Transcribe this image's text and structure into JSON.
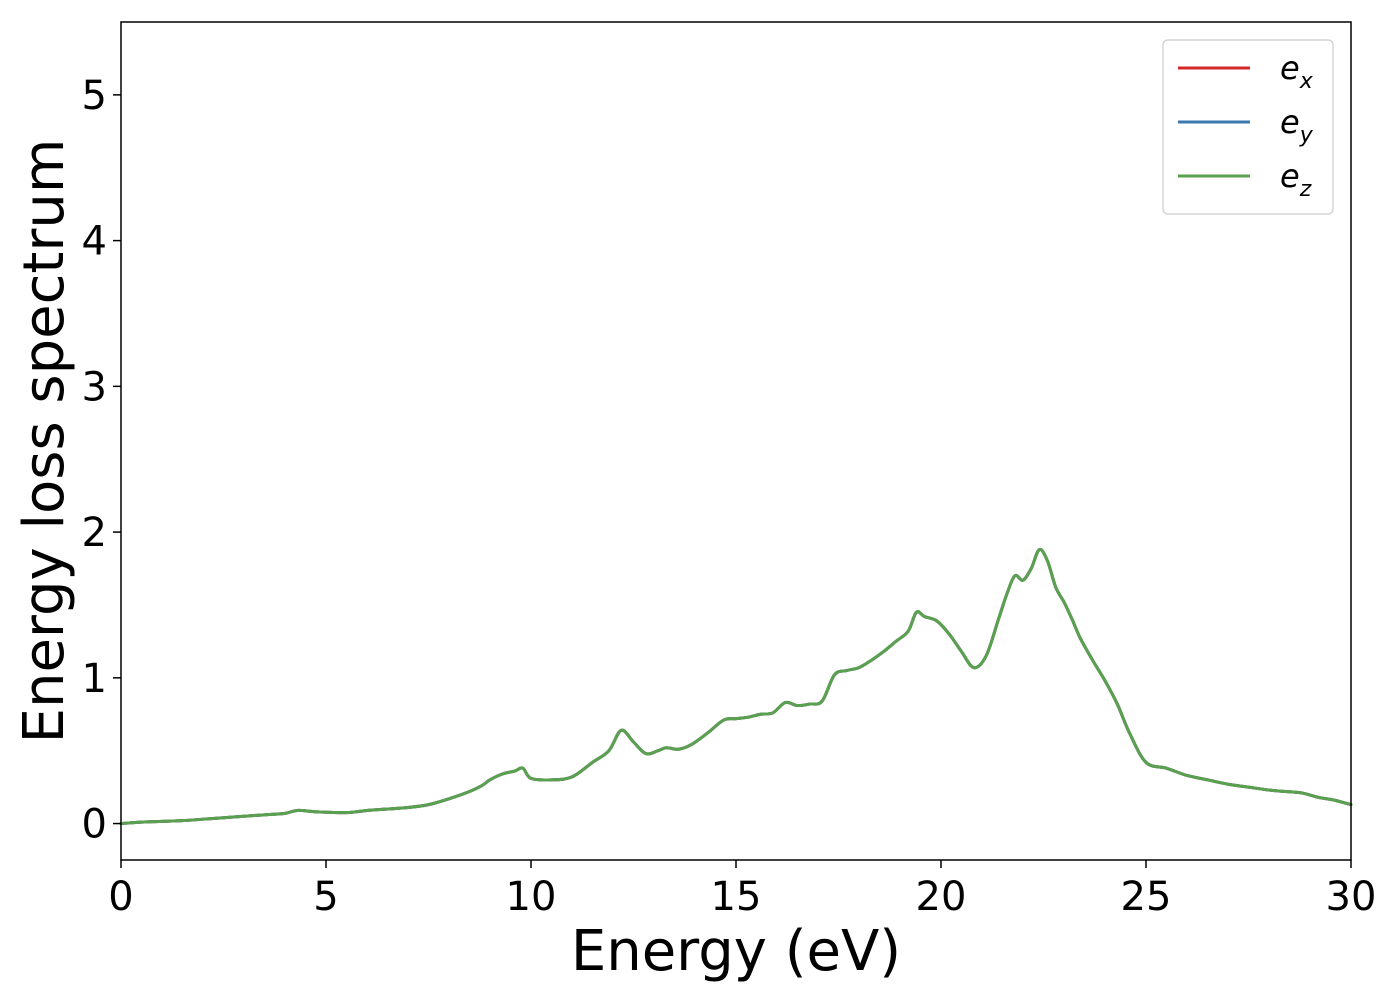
{
  "chart_data": {
    "type": "line",
    "xlabel": "Energy (eV)",
    "ylabel": "Energy loss spectrum",
    "xlim": [
      0,
      30
    ],
    "ylim": [
      -0.25,
      5.5
    ],
    "xticks": [
      0,
      5,
      10,
      15,
      20,
      25,
      30
    ],
    "yticks": [
      0,
      1,
      2,
      3,
      4,
      5
    ],
    "xtick_labels": [
      "0",
      "5",
      "10",
      "15",
      "20",
      "25",
      "30"
    ],
    "ytick_labels": [
      "0",
      "1",
      "2",
      "3",
      "4",
      "5"
    ],
    "grid": false,
    "legend_position": "top-right",
    "x": [
      0,
      0.5,
      1,
      1.5,
      2,
      2.5,
      3,
      3.5,
      4,
      4.3,
      4.8,
      5.5,
      6,
      6.5,
      7,
      7.5,
      8,
      8.5,
      8.8,
      9.0,
      9.3,
      9.6,
      9.8,
      10.0,
      10.5,
      11.0,
      11.5,
      11.9,
      12.2,
      12.5,
      12.8,
      13.1,
      13.3,
      13.6,
      13.9,
      14.3,
      14.7,
      15.0,
      15.3,
      15.6,
      15.9,
      16.2,
      16.5,
      16.8,
      17.1,
      17.4,
      17.7,
      18.0,
      18.3,
      18.6,
      18.9,
      19.2,
      19.4,
      19.6,
      19.9,
      20.2,
      20.5,
      20.8,
      21.1,
      21.4,
      21.6,
      21.8,
      22.0,
      22.2,
      22.4,
      22.6,
      22.8,
      23.0,
      23.2,
      23.4,
      23.7,
      24.0,
      24.3,
      24.6,
      25.0,
      25.5,
      26.0,
      26.5,
      27.0,
      27.5,
      28.0,
      28.4,
      28.8,
      29.2,
      29.6,
      30.0
    ],
    "series": [
      {
        "name": "e_x",
        "legend_base": "e",
        "legend_sub": "x",
        "color": "#d62728",
        "values": [
          0,
          0.01,
          0.015,
          0.02,
          0.03,
          0.04,
          0.05,
          0.06,
          0.07,
          0.09,
          0.08,
          0.075,
          0.09,
          0.1,
          0.11,
          0.13,
          0.17,
          0.22,
          0.26,
          0.3,
          0.34,
          0.36,
          0.38,
          0.31,
          0.3,
          0.32,
          0.42,
          0.5,
          0.64,
          0.56,
          0.48,
          0.5,
          0.52,
          0.51,
          0.54,
          0.62,
          0.71,
          0.72,
          0.73,
          0.75,
          0.76,
          0.83,
          0.81,
          0.82,
          0.84,
          1.02,
          1.05,
          1.07,
          1.12,
          1.18,
          1.25,
          1.32,
          1.45,
          1.42,
          1.39,
          1.3,
          1.18,
          1.07,
          1.15,
          1.4,
          1.57,
          1.7,
          1.67,
          1.75,
          1.88,
          1.8,
          1.62,
          1.52,
          1.4,
          1.27,
          1.12,
          0.98,
          0.82,
          0.62,
          0.42,
          0.38,
          0.33,
          0.3,
          0.27,
          0.25,
          0.23,
          0.22,
          0.21,
          0.18,
          0.16,
          0.13
        ]
      },
      {
        "name": "e_y",
        "legend_base": "e",
        "legend_sub": "y",
        "color": "#3a78ad",
        "values": [
          0,
          0.01,
          0.015,
          0.02,
          0.03,
          0.04,
          0.05,
          0.06,
          0.07,
          0.09,
          0.08,
          0.075,
          0.09,
          0.1,
          0.11,
          0.13,
          0.17,
          0.22,
          0.26,
          0.3,
          0.34,
          0.36,
          0.38,
          0.31,
          0.3,
          0.32,
          0.42,
          0.5,
          0.64,
          0.56,
          0.48,
          0.5,
          0.52,
          0.51,
          0.54,
          0.62,
          0.71,
          0.72,
          0.73,
          0.75,
          0.76,
          0.83,
          0.81,
          0.82,
          0.84,
          1.02,
          1.05,
          1.07,
          1.12,
          1.18,
          1.25,
          1.32,
          1.45,
          1.42,
          1.39,
          1.3,
          1.18,
          1.07,
          1.15,
          1.4,
          1.57,
          1.7,
          1.67,
          1.75,
          1.88,
          1.8,
          1.62,
          1.52,
          1.4,
          1.27,
          1.12,
          0.98,
          0.82,
          0.62,
          0.42,
          0.38,
          0.33,
          0.3,
          0.27,
          0.25,
          0.23,
          0.22,
          0.21,
          0.18,
          0.16,
          0.13
        ]
      },
      {
        "name": "e_z",
        "legend_base": "e",
        "legend_sub": "z",
        "color": "#59a14f",
        "values": [
          0,
          0.01,
          0.015,
          0.02,
          0.03,
          0.04,
          0.05,
          0.06,
          0.07,
          0.09,
          0.08,
          0.075,
          0.09,
          0.1,
          0.11,
          0.13,
          0.17,
          0.22,
          0.26,
          0.3,
          0.34,
          0.36,
          0.38,
          0.31,
          0.3,
          0.32,
          0.42,
          0.5,
          0.64,
          0.56,
          0.48,
          0.5,
          0.52,
          0.51,
          0.54,
          0.62,
          0.71,
          0.72,
          0.73,
          0.75,
          0.76,
          0.83,
          0.81,
          0.82,
          0.84,
          1.02,
          1.05,
          1.07,
          1.12,
          1.18,
          1.25,
          1.32,
          1.45,
          1.42,
          1.39,
          1.3,
          1.18,
          1.07,
          1.15,
          1.4,
          1.57,
          1.7,
          1.67,
          1.75,
          1.88,
          1.8,
          1.62,
          1.52,
          1.4,
          1.27,
          1.12,
          0.98,
          0.82,
          0.62,
          0.42,
          0.38,
          0.33,
          0.3,
          0.27,
          0.25,
          0.23,
          0.22,
          0.21,
          0.18,
          0.16,
          0.13
        ]
      }
    ]
  }
}
